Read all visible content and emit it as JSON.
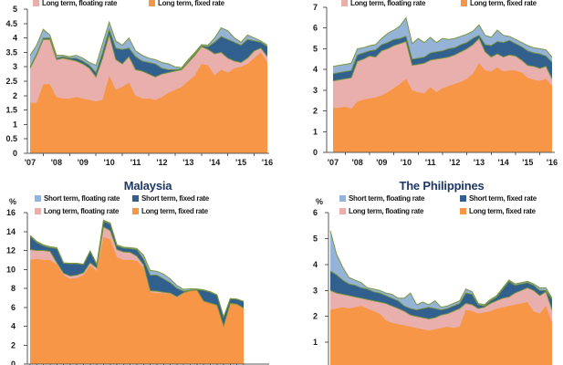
{
  "figure": {
    "percent_symbol": "%",
    "series_border_color": "#77933C",
    "title_color": "#1F3864",
    "axis_color": "#595959",
    "label_color": "#1a1a1a"
  },
  "chart_data": [
    {
      "position": "top-left",
      "type": "area",
      "stacked": true,
      "ylim": [
        0,
        5
      ],
      "ytick_labels": [
        "0",
        "0.5",
        "1",
        "1.5",
        "2",
        "2.5",
        "3",
        "3.5",
        "4",
        "4.5",
        "5"
      ],
      "xtick_labels": [
        "'07",
        "'08",
        "'09",
        "'10",
        "'11",
        "'12",
        "'13",
        "'14",
        "'15",
        "'16"
      ],
      "legend": [
        {
          "label": "Long term, floating rate",
          "color": "#E9AFAD"
        },
        {
          "label": "Long term, fixed rate",
          "color": "#F79646"
        }
      ],
      "series": [
        {
          "name": "Long term, fixed rate",
          "color": "#F79646",
          "values": [
            1.75,
            1.75,
            2.4,
            2.4,
            1.95,
            1.9,
            1.9,
            1.95,
            1.9,
            1.85,
            1.8,
            1.85,
            2.7,
            2.2,
            2.3,
            2.45,
            2.0,
            1.9,
            1.9,
            1.85,
            1.95,
            2.1,
            2.2,
            2.3,
            2.5,
            2.7,
            3.1,
            3.05,
            2.7,
            2.9,
            2.8,
            2.95,
            3.0,
            3.1,
            3.3,
            3.5,
            3.15
          ]
        },
        {
          "name": "Long term, floating rate",
          "color": "#E9AFAD",
          "values": [
            1.2,
            1.65,
            1.55,
            1.55,
            1.3,
            1.4,
            1.35,
            1.25,
            1.2,
            1.1,
            0.85,
            1.45,
            1.4,
            1.05,
            0.8,
            0.9,
            0.9,
            0.95,
            0.85,
            0.8,
            0.8,
            0.7,
            0.65,
            0.6,
            0.65,
            0.7,
            0.6,
            0.55,
            0.75,
            0.6,
            0.5,
            0.25,
            0.15,
            0.2,
            0.25,
            0.15,
            0.2
          ]
        },
        {
          "name": "Short term, fixed rate",
          "color": "#31608F",
          "values": [
            0.05,
            0.05,
            0.05,
            0.05,
            0.05,
            0.05,
            0.05,
            0.1,
            0.1,
            0.1,
            0.15,
            0.2,
            0.2,
            0.4,
            0.5,
            0.3,
            0.45,
            0.35,
            0.4,
            0.45,
            0.2,
            0.1,
            0.05,
            0.03,
            0.05,
            0.05,
            0.03,
            0.1,
            0.4,
            0.55,
            0.65,
            0.65,
            0.6,
            0.65,
            0.35,
            0.2,
            0.35
          ]
        },
        {
          "name": "Short term, floating rate",
          "color": "#95B3D7",
          "values": [
            0.4,
            0.3,
            0.3,
            0.1,
            0.1,
            0.05,
            0.05,
            0.1,
            0.1,
            0.1,
            0.25,
            0.3,
            0.25,
            0.25,
            0.15,
            0.35,
            0.2,
            0.2,
            0.15,
            0.15,
            0.2,
            0.2,
            0.1,
            0.04,
            0.05,
            0.05,
            0.04,
            0.05,
            0.15,
            0.3,
            0.3,
            0.15,
            0.1,
            0.15,
            0.1,
            0.05,
            0.05
          ]
        }
      ]
    },
    {
      "position": "top-right",
      "type": "area",
      "stacked": true,
      "ylim": [
        0,
        7
      ],
      "ytick_labels": [
        "0",
        "1",
        "2",
        "3",
        "4",
        "5",
        "6",
        "7"
      ],
      "xtick_labels": [
        "'07",
        "'08",
        "'09",
        "'10",
        "'11",
        "'12",
        "'13",
        "'14",
        "'15",
        "'16"
      ],
      "legend": [
        {
          "label": "Long term, floating rate",
          "color": "#E9AFAD"
        },
        {
          "label": "Long term, fixed rate",
          "color": "#F79646"
        }
      ],
      "series": [
        {
          "name": "Long term, fixed rate",
          "color": "#F79646",
          "values": [
            2.15,
            2.15,
            2.2,
            2.1,
            2.45,
            2.55,
            2.6,
            2.65,
            2.75,
            2.9,
            3.1,
            3.3,
            3.55,
            3.0,
            2.9,
            2.85,
            3.15,
            2.9,
            3.1,
            3.2,
            3.3,
            3.4,
            3.55,
            3.8,
            4.3,
            3.95,
            3.9,
            4.1,
            3.9,
            3.95,
            3.95,
            3.85,
            3.6,
            3.5,
            3.45,
            3.55,
            3.2
          ]
        },
        {
          "name": "Long term, floating rate",
          "color": "#E9AFAD",
          "values": [
            1.3,
            1.35,
            1.35,
            1.5,
            1.95,
            1.95,
            2.05,
            1.95,
            2.15,
            2.1,
            2.05,
            1.95,
            1.8,
            1.2,
            1.35,
            1.45,
            1.3,
            1.6,
            1.45,
            1.4,
            1.4,
            1.45,
            1.45,
            1.4,
            1.2,
            0.9,
            0.7,
            0.65,
            0.7,
            0.75,
            0.7,
            0.6,
            0.6,
            0.65,
            0.6,
            0.6,
            0.35
          ]
        },
        {
          "name": "Short term, fixed rate",
          "color": "#31608F",
          "values": [
            0.35,
            0.35,
            0.35,
            0.35,
            0.3,
            0.3,
            0.25,
            0.35,
            0.3,
            0.3,
            0.3,
            0.25,
            0.25,
            0.3,
            0.3,
            0.3,
            0.35,
            0.35,
            0.35,
            0.4,
            0.35,
            0.35,
            0.3,
            0.3,
            0.15,
            0.35,
            0.55,
            0.6,
            0.7,
            0.7,
            0.6,
            0.65,
            0.7,
            0.65,
            0.7,
            0.5,
            0.8
          ]
        },
        {
          "name": "Short term, floating rate",
          "color": "#95B3D7",
          "values": [
            0.35,
            0.35,
            0.35,
            0.35,
            0.3,
            0.25,
            0.25,
            0.25,
            0.3,
            0.45,
            0.45,
            0.6,
            0.9,
            0.75,
            0.95,
            0.7,
            0.75,
            0.45,
            0.6,
            0.45,
            0.45,
            0.4,
            0.4,
            0.35,
            0.5,
            0.45,
            0.4,
            0.55,
            0.35,
            0.2,
            0.2,
            0.2,
            0.25,
            0.25,
            0.25,
            0.3,
            0.25
          ]
        }
      ]
    },
    {
      "position": "bottom-left",
      "title": "Malaysia",
      "ylabel": "%",
      "type": "area",
      "stacked": true,
      "ylim": [
        0,
        16
      ],
      "ytick_labels": [
        "0",
        "2",
        "4",
        "6",
        "8",
        "10",
        "12",
        "14",
        "16"
      ],
      "xtick_labels": [],
      "legend": [
        {
          "label": "Short term, floating rate",
          "color": "#95B3D7"
        },
        {
          "label": "Short term, fixed rate",
          "color": "#31608F"
        },
        {
          "label": "Long term, floating rate",
          "color": "#E9AFAD"
        },
        {
          "label": "Long term, fixed rate",
          "color": "#F79646"
        }
      ],
      "series": [
        {
          "name": "Long term, fixed rate",
          "color": "#F79646",
          "values": [
            11.0,
            11.1,
            11.0,
            11.0,
            10.5,
            9.4,
            9.0,
            9.1,
            9.4,
            10.4,
            9.8,
            13.4,
            13.2,
            11.3,
            11.0,
            11.0,
            10.9,
            10.2,
            7.6,
            7.5,
            7.5,
            7.4,
            7.0,
            7.5,
            7.7,
            7.8,
            6.6,
            6.4,
            6.2,
            4.0,
            6.4,
            6.3,
            5.9
          ]
        },
        {
          "name": "Long term, floating rate",
          "color": "#E9AFAD",
          "values": [
            1.1,
            0.9,
            1.0,
            0.9,
            0.2,
            0.2,
            0.3,
            0.3,
            0.25,
            0.3,
            0.35,
            1.1,
            0.9,
            0.8,
            0.85,
            0.8,
            0.5,
            0.3,
            0.15,
            0.2,
            0.1,
            0.1,
            0.1,
            0.05,
            0.05,
            0.03,
            0.05,
            0.05,
            0.03,
            0.02,
            0.02,
            0.02,
            0.02
          ]
        },
        {
          "name": "Short term, fixed rate",
          "color": "#31608F",
          "values": [
            1.4,
            0.85,
            0.5,
            0.4,
            1.5,
            1.05,
            1.3,
            1.2,
            0.85,
            1.2,
            0.35,
            0.6,
            0.7,
            0.4,
            0.4,
            0.4,
            0.7,
            0.6,
            1.65,
            1.7,
            1.4,
            1.1,
            0.9,
            0.15,
            0.05,
            0.04,
            1.15,
            1.15,
            1.07,
            0.93,
            0.48,
            0.53,
            0.68
          ]
        },
        {
          "name": "Short term, floating rate",
          "color": "#95B3D7",
          "values": [
            0.1,
            0.1,
            0.1,
            0.1,
            0.1,
            0.05,
            0.05,
            0.05,
            0.05,
            0.05,
            0.05,
            0.1,
            0.1,
            0.1,
            0.1,
            0.1,
            0.1,
            0.4,
            0.5,
            0.4,
            0.5,
            0.4,
            0.3,
            0.2,
            0.15,
            0.07,
            0.05,
            0.05,
            0.02,
            0.02,
            0.02,
            0.02,
            0.02
          ]
        }
      ]
    },
    {
      "position": "bottom-right",
      "title": "The Philippines",
      "ylabel": "%",
      "type": "area",
      "stacked": true,
      "ylim": [
        0,
        6
      ],
      "ytick_labels": [
        "0",
        "1",
        "2",
        "3",
        "4",
        "5",
        "6"
      ],
      "xtick_labels": [],
      "legend": [
        {
          "label": "Short term, floating rate",
          "color": "#95B3D7"
        },
        {
          "label": "Short term, fixed rate",
          "color": "#31608F"
        },
        {
          "label": "Long term, floating rate",
          "color": "#E9AFAD"
        },
        {
          "label": "Long term, fixed rate",
          "color": "#F79646"
        }
      ],
      "series": [
        {
          "name": "Long term, fixed rate",
          "color": "#F79646",
          "values": [
            2.25,
            2.3,
            2.35,
            2.3,
            2.35,
            2.4,
            2.3,
            2.2,
            2.1,
            1.85,
            1.75,
            1.7,
            1.65,
            1.6,
            1.55,
            1.5,
            1.45,
            1.5,
            1.55,
            1.6,
            1.55,
            1.6,
            2.25,
            2.2,
            2.1,
            2.15,
            2.2,
            2.3,
            2.35,
            2.4,
            2.45,
            2.5,
            2.55,
            2.2,
            2.1,
            2.4,
            1.75
          ]
        },
        {
          "name": "Long term, floating rate",
          "color": "#E9AFAD",
          "values": [
            0.75,
            0.6,
            0.5,
            0.5,
            0.4,
            0.3,
            0.35,
            0.4,
            0.45,
            0.65,
            0.65,
            0.6,
            0.55,
            0.45,
            0.45,
            0.45,
            0.45,
            0.45,
            0.5,
            0.5,
            0.65,
            0.7,
            0.25,
            0.25,
            0.2,
            0.2,
            0.3,
            0.3,
            0.35,
            0.35,
            0.45,
            0.5,
            0.55,
            0.8,
            0.7,
            0.55,
            0.5
          ]
        },
        {
          "name": "Short term, fixed rate",
          "color": "#31608F",
          "values": [
            0.75,
            0.7,
            0.55,
            0.45,
            0.45,
            0.4,
            0.4,
            0.35,
            0.35,
            0.3,
            0.3,
            0.3,
            0.2,
            0.25,
            0.25,
            0.35,
            0.45,
            0.35,
            0.2,
            0.2,
            0.2,
            0.2,
            0.4,
            0.4,
            0.15,
            0.05,
            0.1,
            0.15,
            0.35,
            0.6,
            0.3,
            0.25,
            0.2,
            0.2,
            0.2,
            0.05,
            0.4
          ]
        },
        {
          "name": "Short term, floating rate",
          "color": "#95B3D7",
          "values": [
            1.55,
            0.8,
            0.5,
            0.25,
            0.2,
            0.2,
            0.05,
            0.1,
            0.1,
            0.1,
            0.15,
            0.1,
            0.3,
            0.6,
            0.2,
            0.25,
            0.1,
            0.3,
            0.1,
            0.1,
            0.1,
            0.1,
            0.15,
            0.1,
            0.05,
            0.05,
            0.05,
            0.05,
            0.05,
            0.05,
            0.05,
            0.05,
            0.05,
            0.05,
            0.1,
            0.1,
            0.05
          ]
        }
      ]
    }
  ]
}
